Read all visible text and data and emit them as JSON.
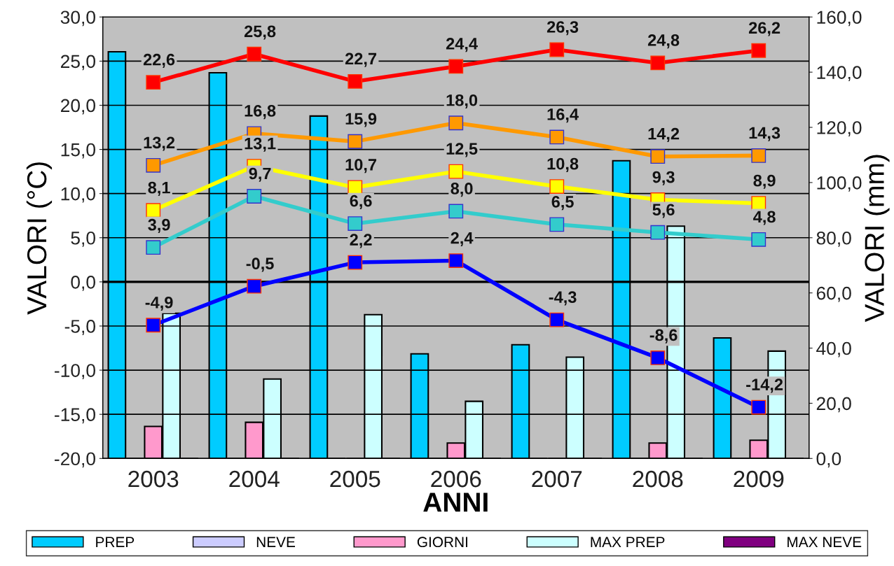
{
  "chart_data": {
    "type": "bar",
    "xlabel": "ANNI",
    "ylabel": "VALORI (°C)",
    "y2label": "VALORI (mm)",
    "categories": [
      "2003",
      "2004",
      "2005",
      "2006",
      "2007",
      "2008",
      "2009"
    ],
    "series": [
      {
        "name": "PREP",
        "axis": "y2",
        "color": "#00ccff",
        "values": [
          147.4,
          139.8,
          124.1,
          37.9,
          41.2,
          107.9,
          43.7
        ]
      },
      {
        "name": "NEVE",
        "axis": "y2",
        "color": "#ccccff",
        "values": [
          0,
          0,
          0,
          0,
          0,
          0,
          0
        ]
      },
      {
        "name": "GIORNI",
        "axis": "y2",
        "color": "#ff99cc",
        "values": [
          11.6,
          13.1,
          0,
          5.6,
          0,
          5.6,
          6.6
        ]
      },
      {
        "name": "MAX PREP",
        "axis": "y2",
        "color": "#ccffff",
        "values": [
          52.6,
          28.8,
          52.1,
          20.7,
          36.7,
          84.2,
          38.9
        ]
      },
      {
        "name": "MAX NEVE",
        "axis": "y2",
        "color": "#800080",
        "values": [
          0,
          0,
          0,
          0,
          0,
          0,
          0
        ]
      },
      {
        "type": "line",
        "color": "#ff0000",
        "values": [
          22.6,
          25.8,
          22.7,
          24.4,
          26.3,
          24.8,
          26.2
        ],
        "value_labels": [
          "22,6",
          "25,8",
          "22,7",
          "24,4",
          "26,3",
          "24,8",
          "26,2"
        ]
      },
      {
        "type": "line",
        "color": "#ff9900",
        "values": [
          13.2,
          16.8,
          15.9,
          18.0,
          16.4,
          14.2,
          14.3
        ],
        "value_labels": [
          "13,2",
          "16,8",
          "15,9",
          "18,0",
          "16,4",
          "14,2",
          "14,3"
        ]
      },
      {
        "type": "line",
        "color": "#ffff00",
        "values": [
          8.1,
          13.1,
          10.7,
          12.5,
          10.8,
          9.3,
          8.9
        ],
        "value_labels": [
          "8,1",
          "13,1",
          "10,7",
          "12,5",
          "10,8",
          "9,3",
          "8,9"
        ]
      },
      {
        "type": "line",
        "color": "#33cccc",
        "values": [
          3.9,
          9.7,
          6.6,
          8.0,
          6.5,
          5.6,
          4.8
        ],
        "value_labels": [
          "3,9",
          "9,7",
          "6,6",
          "8,0",
          "6,5",
          "5,6",
          "4,8"
        ]
      },
      {
        "type": "line",
        "color": "#0000ff",
        "values": [
          -4.9,
          -0.5,
          2.2,
          2.4,
          -4.3,
          -8.6,
          -14.2
        ],
        "value_labels": [
          "-4,9",
          "-0,5",
          "2,2",
          "2,4",
          "-4,3",
          "-8,6",
          "-14,2"
        ]
      }
    ],
    "ylim": [
      -20,
      30
    ],
    "yticks": [
      {
        "value": -20,
        "label": "-20,0"
      },
      {
        "value": -15,
        "label": "-15,0"
      },
      {
        "value": -10,
        "label": "-10,0"
      },
      {
        "value": -5,
        "label": "-5,0"
      },
      {
        "value": 0,
        "label": "0,0"
      },
      {
        "value": 5,
        "label": "5,0"
      },
      {
        "value": 10,
        "label": "10,0"
      },
      {
        "value": 15,
        "label": "15,0"
      },
      {
        "value": 20,
        "label": "20,0"
      },
      {
        "value": 25,
        "label": "25,0"
      },
      {
        "value": 30,
        "label": "30,0"
      }
    ],
    "y2lim": [
      0,
      160
    ],
    "y2ticks": [
      {
        "value": 0,
        "label": "0,0"
      },
      {
        "value": 20,
        "label": "20,0"
      },
      {
        "value": 40,
        "label": "40,0"
      },
      {
        "value": 60,
        "label": "60,0"
      },
      {
        "value": 80,
        "label": "80,0"
      },
      {
        "value": 100,
        "label": "100,0"
      },
      {
        "value": 120,
        "label": "120,0"
      },
      {
        "value": 140,
        "label": "140,0"
      },
      {
        "value": 160,
        "label": "160,0"
      }
    ],
    "ref_lines": [
      {
        "axis": "y",
        "value": 0,
        "color": "#000000"
      }
    ],
    "grid": "y",
    "legend": "bottom",
    "marker": "square"
  }
}
